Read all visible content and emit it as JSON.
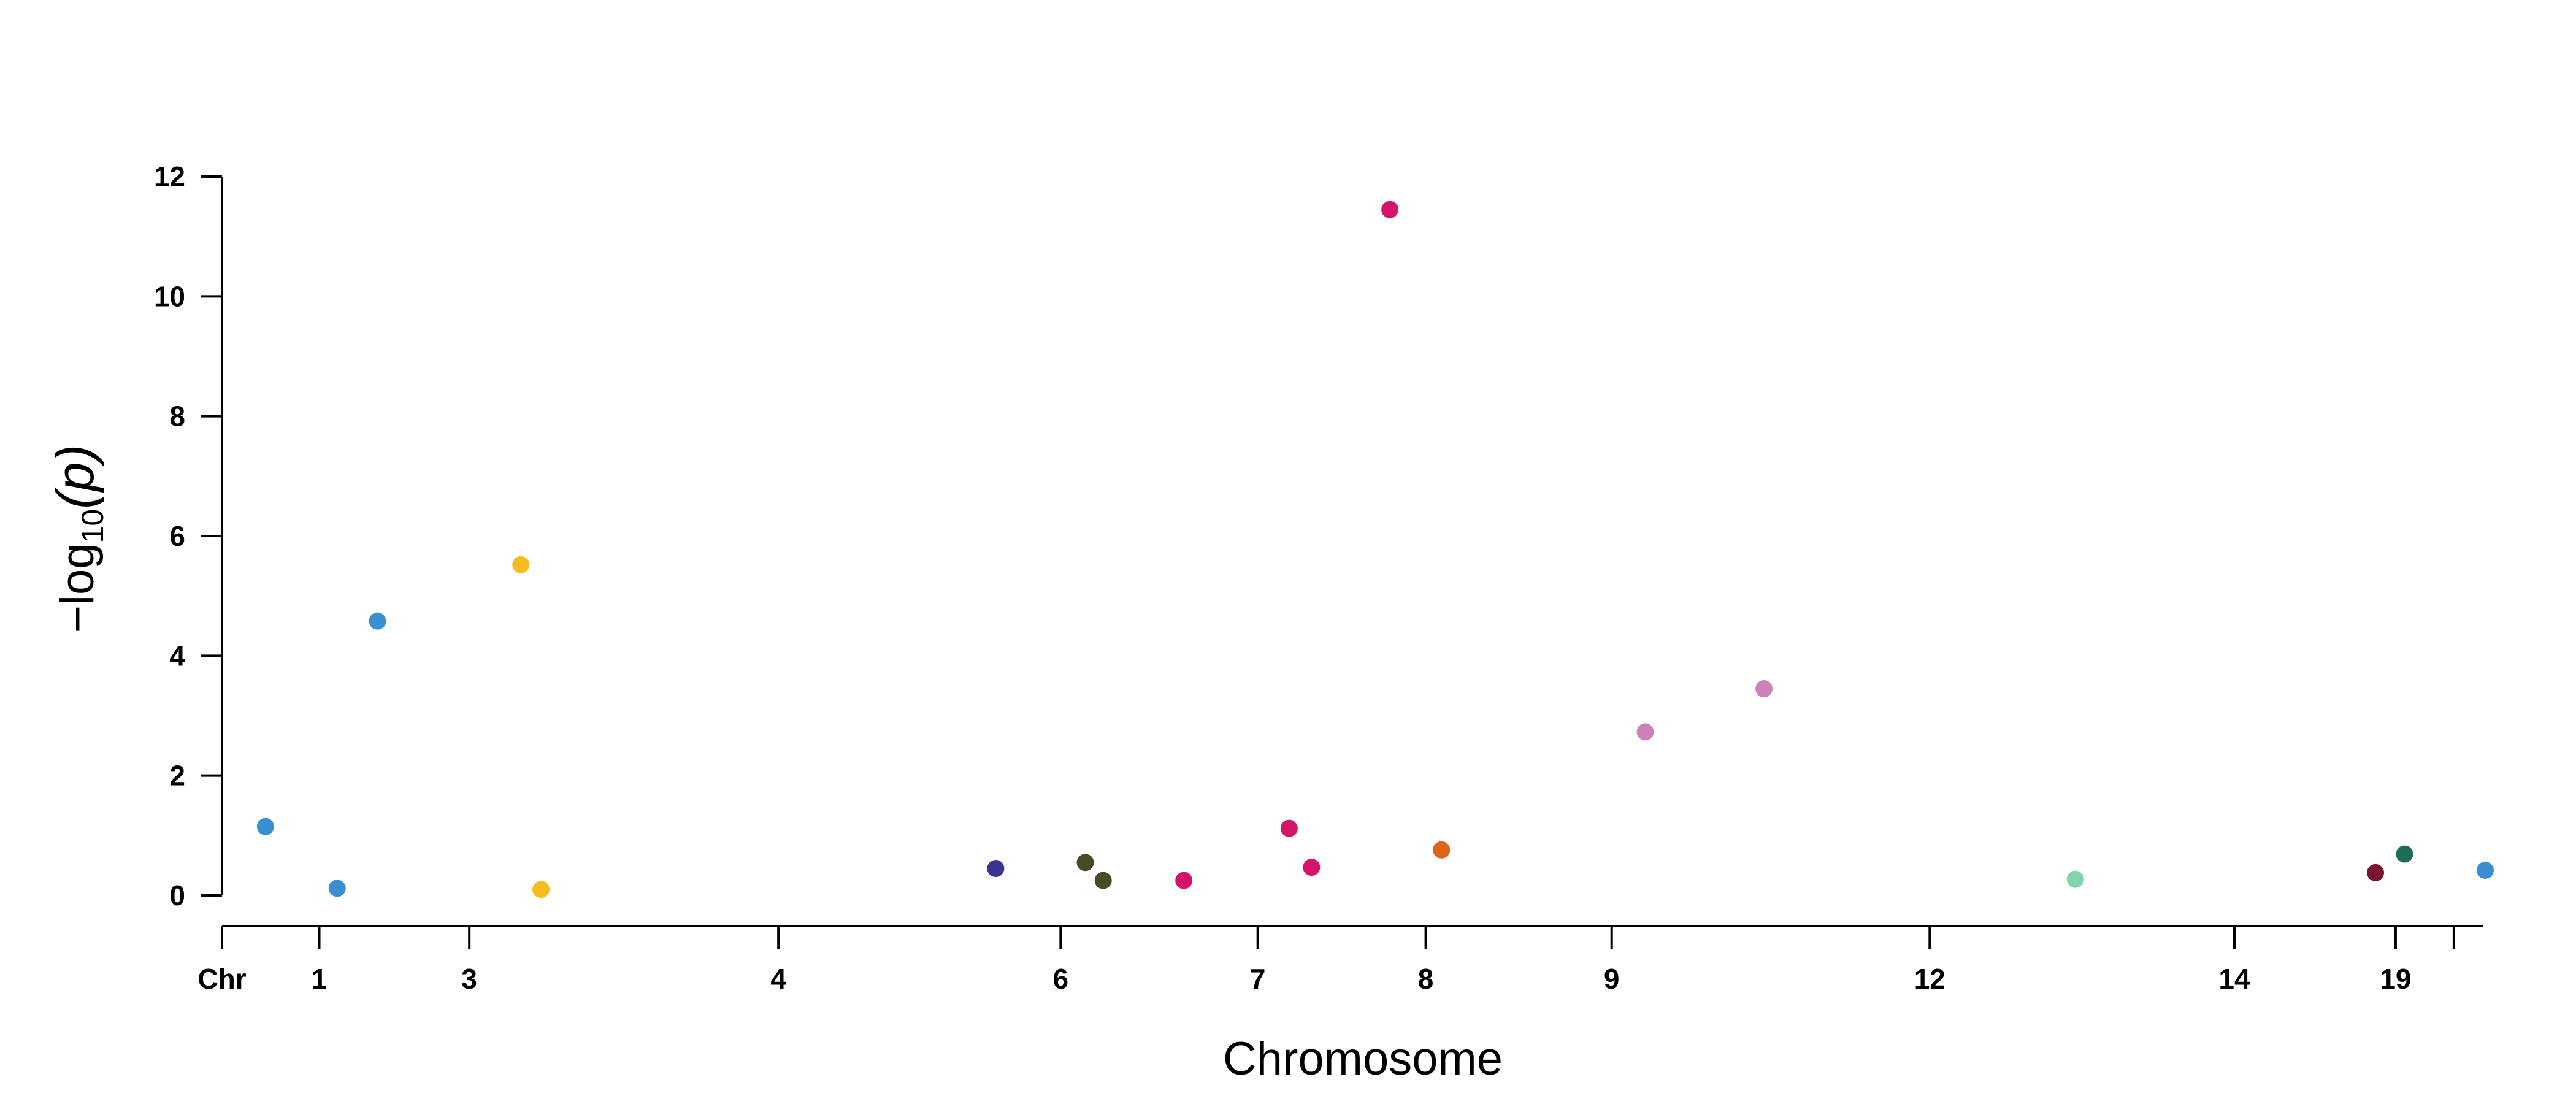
{
  "chart_data": {
    "type": "scatter",
    "title": "",
    "xlabel": "Chromosome",
    "ylabel": "−log10(p)",
    "ylabel_parts": {
      "prefix": "−log",
      "subscript": "10",
      "suffix": "(p)"
    },
    "ylim": [
      0,
      12
    ],
    "yticks": [
      0,
      2,
      4,
      6,
      8,
      10,
      12
    ],
    "grid": false,
    "legend": "none",
    "chr_label": "Chr",
    "x_range": [
      0,
      100
    ],
    "x_ticks": [
      {
        "label": "1",
        "pos": 3.3
      },
      {
        "label": "3",
        "pos": 10.0
      },
      {
        "label": "4",
        "pos": 23.8
      },
      {
        "label": "6",
        "pos": 36.4
      },
      {
        "label": "7",
        "pos": 45.2
      },
      {
        "label": "8",
        "pos": 52.7
      },
      {
        "label": "9",
        "pos": 61.0
      },
      {
        "label": "12",
        "pos": 75.2
      },
      {
        "label": "14",
        "pos": 88.8
      },
      {
        "label": "19",
        "pos": 96.0
      },
      {
        "label": "",
        "pos": 98.6
      }
    ],
    "points": [
      {
        "chr": "1",
        "x": 0.9,
        "y": 1.15,
        "color": "#3a8fd0"
      },
      {
        "chr": "1",
        "x": 4.1,
        "y": 0.12,
        "color": "#3a8fd0"
      },
      {
        "chr": "1",
        "x": 5.9,
        "y": 4.58,
        "color": "#3a8fd0"
      },
      {
        "chr": "3",
        "x": 12.3,
        "y": 5.52,
        "color": "#f5bd1f"
      },
      {
        "chr": "3",
        "x": 13.2,
        "y": 0.1,
        "color": "#f5bd1f"
      },
      {
        "chr": "4",
        "x": 33.5,
        "y": 0.45,
        "color": "#3b3493"
      },
      {
        "chr": "6",
        "x": 37.5,
        "y": 0.55,
        "color": "#4a4a24"
      },
      {
        "chr": "6",
        "x": 38.3,
        "y": 0.25,
        "color": "#4a4a24"
      },
      {
        "chr": "6",
        "x": 41.9,
        "y": 0.25,
        "color": "#d41369"
      },
      {
        "chr": "7",
        "x": 46.6,
        "y": 1.12,
        "color": "#d41369"
      },
      {
        "chr": "7",
        "x": 47.6,
        "y": 0.47,
        "color": "#d41369"
      },
      {
        "chr": "7",
        "x": 51.1,
        "y": 11.45,
        "color": "#d41369"
      },
      {
        "chr": "8",
        "x": 53.4,
        "y": 0.76,
        "color": "#e06418"
      },
      {
        "chr": "9",
        "x": 62.5,
        "y": 2.73,
        "color": "#cd82b7"
      },
      {
        "chr": "9",
        "x": 67.8,
        "y": 3.45,
        "color": "#cd82b7"
      },
      {
        "chr": "12",
        "x": 81.7,
        "y": 0.27,
        "color": "#82d4ad"
      },
      {
        "chr": "14",
        "x": 95.1,
        "y": 0.38,
        "color": "#7a1433"
      },
      {
        "chr": "19",
        "x": 96.4,
        "y": 0.69,
        "color": "#1e6d57"
      },
      {
        "chr": "19",
        "x": 100.0,
        "y": 0.42,
        "color": "#3a8fd0"
      }
    ]
  }
}
